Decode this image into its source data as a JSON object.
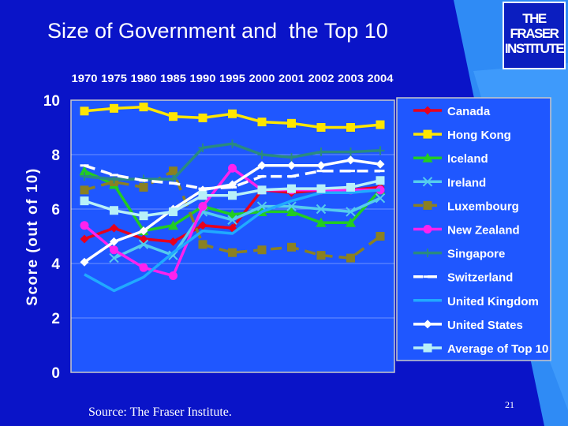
{
  "slide": {
    "title": "Size of Government and  the Top 10",
    "logo_line1": "THE FRASER",
    "logo_line2": "INSTITUTE",
    "source": "Source: The Fraser Institute.",
    "page_number": "21"
  },
  "colors": {
    "background": "#0a14c8",
    "plot_background": "#1f57ff",
    "panel_accent": "#2f8bf5"
  },
  "chart_data": {
    "type": "line",
    "title": "",
    "xlabel": "",
    "ylabel": "Score (out of 10)",
    "x": [
      "1970",
      "1975",
      "1980",
      "1985",
      "1990",
      "1995",
      "2000",
      "2001",
      "2002",
      "2003",
      "2004"
    ],
    "yticks": [
      "0",
      "2",
      "4",
      "6",
      "8",
      "10"
    ],
    "ylim": [
      0,
      10
    ],
    "legend_position": "right",
    "grid": true,
    "series": [
      {
        "name": "Canada",
        "color": "#e8001c",
        "marker": "diamond",
        "dash": false,
        "values": [
          4.9,
          5.3,
          4.9,
          4.8,
          5.4,
          5.3,
          6.7,
          6.6,
          6.7,
          6.7,
          6.8
        ]
      },
      {
        "name": "Hong Kong",
        "color": "#ffe600",
        "marker": "square",
        "dash": false,
        "values": [
          9.6,
          9.7,
          9.75,
          9.4,
          9.35,
          9.5,
          9.2,
          9.15,
          9.0,
          9.0,
          9.1
        ]
      },
      {
        "name": "Iceland",
        "color": "#22cc22",
        "marker": "triangle",
        "dash": false,
        "values": [
          7.4,
          6.9,
          5.2,
          5.4,
          6.1,
          5.8,
          5.9,
          5.9,
          5.5,
          5.5,
          6.7
        ]
      },
      {
        "name": "Ireland",
        "color": "#55ccee",
        "marker": "x",
        "dash": false,
        "values": [
          null,
          4.2,
          4.7,
          4.3,
          5.9,
          5.6,
          6.1,
          6.1,
          6.0,
          5.9,
          6.4
        ]
      },
      {
        "name": "Luxembourg",
        "color": "#8a8022",
        "marker": "square",
        "dash": true,
        "values": [
          6.7,
          7.0,
          6.8,
          7.4,
          4.7,
          4.4,
          4.5,
          4.6,
          4.3,
          4.2,
          5.0
        ]
      },
      {
        "name": "New Zealand",
        "color": "#ff22ee",
        "marker": "circle",
        "dash": false,
        "values": [
          5.4,
          4.5,
          3.85,
          3.55,
          6.1,
          7.5,
          6.7,
          6.7,
          6.7,
          6.7,
          6.7
        ]
      },
      {
        "name": "Singapore",
        "color": "#2a8a80",
        "marker": "plus",
        "dash": false,
        "values": [
          7.2,
          7.1,
          7.1,
          7.1,
          8.25,
          8.4,
          8.0,
          7.9,
          8.1,
          8.1,
          8.15
        ]
      },
      {
        "name": "Switzerland",
        "color": "#ffffff",
        "marker": "dash",
        "dash": true,
        "values": [
          7.6,
          7.25,
          7.05,
          6.95,
          6.75,
          6.8,
          7.2,
          7.2,
          7.4,
          7.4,
          7.4
        ]
      },
      {
        "name": "United Kingdom",
        "color": "#20aaff",
        "marker": "none",
        "dash": false,
        "values": [
          3.6,
          3.0,
          3.5,
          4.4,
          5.2,
          5.1,
          5.9,
          6.3,
          6.6,
          6.6,
          6.7
        ]
      },
      {
        "name": "United States",
        "color": "#ffffff",
        "marker": "diamond",
        "dash": false,
        "values": [
          4.05,
          4.8,
          5.2,
          6.0,
          6.7,
          6.9,
          7.6,
          7.6,
          7.6,
          7.8,
          7.65
        ]
      },
      {
        "name": "Average of Top 10",
        "color": "#b8f0f8",
        "marker": "square",
        "dash": false,
        "values": [
          6.3,
          5.95,
          5.75,
          5.9,
          6.5,
          6.5,
          6.7,
          6.75,
          6.75,
          6.8,
          7.05
        ]
      }
    ]
  }
}
